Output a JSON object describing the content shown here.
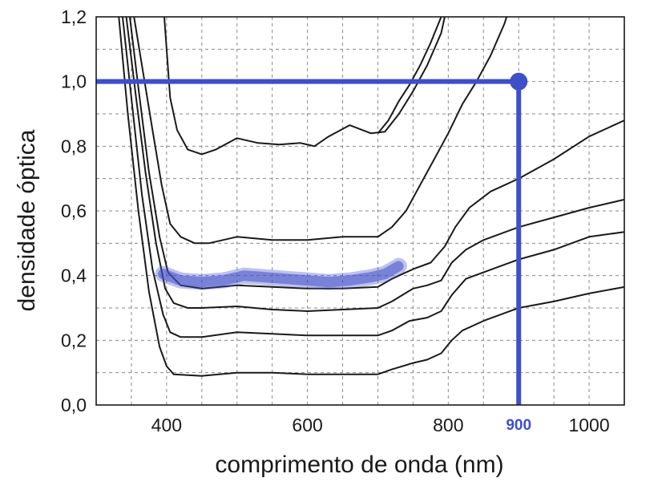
{
  "chart_data": {
    "type": "line",
    "title": "",
    "xlabel": "comprimento de onda (nm)",
    "ylabel": "densidade óptica",
    "xlim": [
      300,
      1050
    ],
    "ylim": [
      0,
      1.2
    ],
    "x_ticks": [
      400,
      600,
      800,
      1000
    ],
    "x_tick_labels": [
      "400",
      "600",
      "800",
      "1000"
    ],
    "y_ticks": [
      0,
      0.2,
      0.4,
      0.6,
      0.8,
      1.0,
      1.2
    ],
    "y_tick_labels": [
      "0,0",
      "0,2",
      "0,4",
      "0,6",
      "0,8",
      "1,0",
      "1,2"
    ],
    "grid": true,
    "grid_style": "dashed",
    "series": [
      {
        "points": [
          [
            330,
            1.25
          ],
          [
            345,
            0.9
          ],
          [
            360,
            0.6
          ],
          [
            375,
            0.35
          ],
          [
            390,
            0.18
          ],
          [
            400,
            0.12
          ],
          [
            410,
            0.095
          ],
          [
            450,
            0.09
          ],
          [
            500,
            0.1
          ],
          [
            550,
            0.1
          ],
          [
            600,
            0.095
          ],
          [
            650,
            0.095
          ],
          [
            700,
            0.095
          ],
          [
            720,
            0.11
          ],
          [
            750,
            0.13
          ],
          [
            770,
            0.14
          ],
          [
            790,
            0.16
          ],
          [
            805,
            0.2
          ],
          [
            820,
            0.23
          ],
          [
            850,
            0.26
          ],
          [
            900,
            0.3
          ],
          [
            950,
            0.32
          ],
          [
            1000,
            0.345
          ],
          [
            1050,
            0.365
          ]
        ]
      },
      {
        "points": [
          [
            335,
            1.25
          ],
          [
            350,
            0.95
          ],
          [
            365,
            0.65
          ],
          [
            380,
            0.42
          ],
          [
            395,
            0.28
          ],
          [
            405,
            0.225
          ],
          [
            420,
            0.21
          ],
          [
            450,
            0.21
          ],
          [
            500,
            0.225
          ],
          [
            550,
            0.22
          ],
          [
            600,
            0.215
          ],
          [
            650,
            0.215
          ],
          [
            700,
            0.215
          ],
          [
            720,
            0.23
          ],
          [
            745,
            0.26
          ],
          [
            770,
            0.27
          ],
          [
            790,
            0.29
          ],
          [
            805,
            0.34
          ],
          [
            825,
            0.39
          ],
          [
            850,
            0.41
          ],
          [
            900,
            0.45
          ],
          [
            950,
            0.48
          ],
          [
            1000,
            0.52
          ],
          [
            1050,
            0.535
          ]
        ]
      },
      {
        "points": [
          [
            340,
            1.25
          ],
          [
            355,
            0.98
          ],
          [
            370,
            0.72
          ],
          [
            385,
            0.5
          ],
          [
            398,
            0.36
          ],
          [
            410,
            0.315
          ],
          [
            430,
            0.3
          ],
          [
            450,
            0.3
          ],
          [
            500,
            0.305
          ],
          [
            550,
            0.295
          ],
          [
            600,
            0.29
          ],
          [
            650,
            0.295
          ],
          [
            700,
            0.3
          ],
          [
            720,
            0.32
          ],
          [
            750,
            0.36
          ],
          [
            770,
            0.37
          ],
          [
            790,
            0.385
          ],
          [
            805,
            0.44
          ],
          [
            825,
            0.48
          ],
          [
            850,
            0.51
          ],
          [
            900,
            0.55
          ],
          [
            950,
            0.58
          ],
          [
            1000,
            0.61
          ],
          [
            1050,
            0.635
          ]
        ]
      },
      {
        "points": [
          [
            345,
            1.25
          ],
          [
            360,
            0.98
          ],
          [
            375,
            0.72
          ],
          [
            390,
            0.52
          ],
          [
            402,
            0.41
          ],
          [
            420,
            0.37
          ],
          [
            450,
            0.36
          ],
          [
            500,
            0.37
          ],
          [
            550,
            0.365
          ],
          [
            600,
            0.36
          ],
          [
            650,
            0.36
          ],
          [
            700,
            0.365
          ],
          [
            720,
            0.39
          ],
          [
            750,
            0.42
          ],
          [
            775,
            0.44
          ],
          [
            795,
            0.49
          ],
          [
            810,
            0.55
          ],
          [
            830,
            0.61
          ],
          [
            860,
            0.66
          ],
          [
            900,
            0.7
          ],
          [
            950,
            0.76
          ],
          [
            1000,
            0.83
          ],
          [
            1050,
            0.88
          ]
        ]
      },
      {
        "points": [
          [
            350,
            1.25
          ],
          [
            365,
            1.05
          ],
          [
            380,
            0.85
          ],
          [
            393,
            0.68
          ],
          [
            405,
            0.56
          ],
          [
            420,
            0.52
          ],
          [
            440,
            0.5
          ],
          [
            460,
            0.5
          ],
          [
            500,
            0.52
          ],
          [
            550,
            0.51
          ],
          [
            600,
            0.51
          ],
          [
            650,
            0.52
          ],
          [
            700,
            0.52
          ],
          [
            720,
            0.55
          ],
          [
            740,
            0.6
          ],
          [
            760,
            0.68
          ],
          [
            780,
            0.76
          ],
          [
            800,
            0.84
          ],
          [
            820,
            0.93
          ],
          [
            840,
            1.0
          ],
          [
            860,
            1.08
          ],
          [
            880,
            1.18
          ],
          [
            890,
            1.25
          ]
        ]
      },
      {
        "points": [
          [
            395,
            1.25
          ],
          [
            400,
            1.1
          ],
          [
            405,
            0.95
          ],
          [
            415,
            0.85
          ],
          [
            430,
            0.79
          ],
          [
            450,
            0.775
          ],
          [
            470,
            0.79
          ],
          [
            500,
            0.825
          ],
          [
            530,
            0.81
          ],
          [
            560,
            0.805
          ],
          [
            590,
            0.81
          ],
          [
            610,
            0.8
          ],
          [
            630,
            0.83
          ],
          [
            660,
            0.865
          ],
          [
            690,
            0.84
          ],
          [
            710,
            0.845
          ],
          [
            730,
            0.9
          ],
          [
            750,
            0.97
          ],
          [
            770,
            1.05
          ],
          [
            790,
            1.15
          ],
          [
            800,
            1.25
          ]
        ]
      },
      {
        "points": [
          [
            700,
            0.84
          ],
          [
            715,
            0.88
          ],
          [
            730,
            0.94
          ],
          [
            745,
            0.99
          ],
          [
            760,
            1.05
          ],
          [
            775,
            1.12
          ],
          [
            790,
            1.2
          ],
          [
            795,
            1.25
          ]
        ]
      }
    ],
    "highlight_series": {
      "name": "",
      "color": "#3f4fc8",
      "points": [
        [
          395,
          0.405
        ],
        [
          420,
          0.385
        ],
        [
          450,
          0.38
        ],
        [
          480,
          0.385
        ],
        [
          510,
          0.4
        ],
        [
          540,
          0.395
        ],
        [
          570,
          0.39
        ],
        [
          600,
          0.385
        ],
        [
          630,
          0.38
        ],
        [
          660,
          0.385
        ],
        [
          690,
          0.395
        ],
        [
          710,
          0.405
        ],
        [
          730,
          0.43
        ]
      ]
    },
    "reference_lines": {
      "color": "#3f4fc8",
      "y_value": 1.0,
      "x_value": 900,
      "x_label": "900"
    },
    "colors": {
      "curves": "#1a1a1a",
      "highlight": "#3f4fc8",
      "grid": "#8a8a8a"
    }
  }
}
